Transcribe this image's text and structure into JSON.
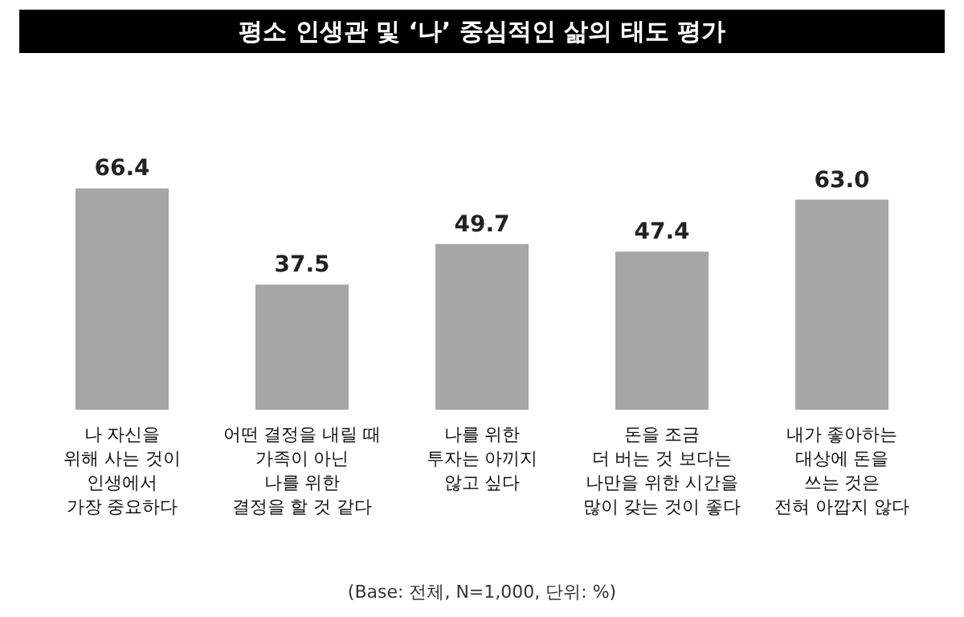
{
  "chart_data": {
    "type": "bar",
    "title": "평소 인생관 및 ‘나’ 중심적인 삶의 태도 평가",
    "categories": [
      "나 자신을\n위해 사는 것이\n인생에서\n가장 중요하다",
      "어떤 결정을 내릴 때\n가족이 아닌\n나를 위한\n결정을 할 것 같다",
      "나를 위한\n투자는 아끼지\n않고 싶다",
      "돈을 조금\n더 버는 것 보다는\n나만을 위한 시간을\n많이 갖는 것이 좋다",
      "내가 좋아하는\n대상에 돈을\n쓰는 것은\n전혀 아깝지 않다"
    ],
    "values": [
      66.4,
      37.5,
      49.7,
      47.4,
      63.0
    ],
    "value_labels": [
      "66.4",
      "37.5",
      "49.7",
      "47.4",
      "63.0"
    ],
    "color": "#a6a6a6",
    "annotations": [
      "(Base: 전체, N=1,000, 단위: %)"
    ]
  }
}
